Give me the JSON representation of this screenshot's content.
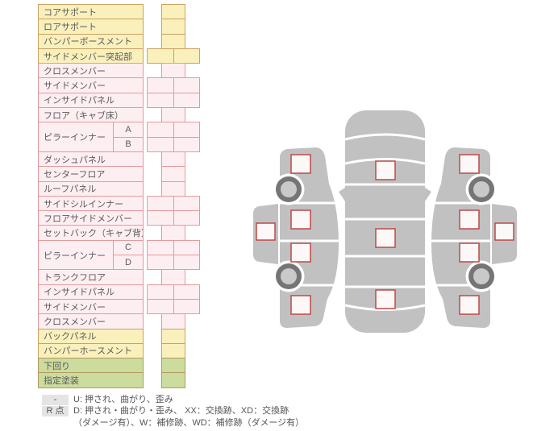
{
  "table": {
    "rows": [
      {
        "label": "コアサポート",
        "color": "yellow",
        "cells": 1
      },
      {
        "label": "ロアサポート",
        "color": "yellow",
        "cells": 1
      },
      {
        "label": "バンパーボースメント",
        "color": "yellow",
        "cells": 1
      },
      {
        "label": "サイドメンバー突起部",
        "color": "yellow",
        "cells": 2
      },
      {
        "label": "クロスメンバー",
        "color": "pink",
        "cells": 1
      },
      {
        "label": "サイドメンバー",
        "color": "pink",
        "cells": 2
      },
      {
        "label": "インサイドパネル",
        "color": "pink",
        "cells": 2
      },
      {
        "label": "フロア（キャブ床）",
        "color": "pink",
        "cells": 1
      },
      {
        "label": "ピラーインナー",
        "color": "pink",
        "cells": 2,
        "subs": [
          "A",
          "B"
        ]
      },
      {
        "label": "ダッシュパネル",
        "color": "pink",
        "cells": 1
      },
      {
        "label": "センターフロア",
        "color": "pink",
        "cells": 1
      },
      {
        "label": "ルーフパネル",
        "color": "pink",
        "cells": 1
      },
      {
        "label": "サイドシルインナー",
        "color": "pink",
        "cells": 2
      },
      {
        "label": "フロアサイドメンバー",
        "color": "pink",
        "cells": 2
      },
      {
        "label": "セットバック（キャブ背）",
        "color": "pink",
        "cells": 1
      },
      {
        "label": "ピラーインナー",
        "color": "pink",
        "cells": 2,
        "subs": [
          "C",
          "D"
        ]
      },
      {
        "label": "トランクフロア",
        "color": "pink",
        "cells": 1
      },
      {
        "label": "インサイドパネル",
        "color": "pink",
        "cells": 2
      },
      {
        "label": "サイドメンバー",
        "color": "pink",
        "cells": 2
      },
      {
        "label": "クロスメンバー",
        "color": "pink",
        "cells": 1
      },
      {
        "label": "バックパネル",
        "color": "yellow",
        "cells": 1
      },
      {
        "label": "バンパーホースメント",
        "color": "yellow",
        "cells": 1
      },
      {
        "label": "下回り",
        "color": "green",
        "cells": 1
      },
      {
        "label": "指定塗装",
        "color": "green",
        "cells": 1
      }
    ]
  },
  "legend": {
    "rows": [
      {
        "badge": "-",
        "text": "U: 押され、曲がり、歪み"
      },
      {
        "badge": "R 点",
        "text": "D: 押され・曲がり・歪み、 XX：交換跡、XD：交換跡"
      },
      {
        "badge": "",
        "text": "（ダメージ有）、W：補修跡、WD：補修跡（ダメージ有）"
      }
    ]
  },
  "diagram": {
    "views": [
      "car-top-view",
      "car-left-side-view",
      "car-right-side-view"
    ],
    "marker_shape": "square",
    "top_view_markers": 3,
    "side_view_markers": 5,
    "wheels_per_side": 2
  },
  "colors": {
    "yellow_fill": "#faf0bc",
    "yellow_border": "#c9a264",
    "pink_fill": "#fdeef1",
    "pink_border": "#e59a9c",
    "green_fill": "#cbdc9e",
    "green_border": "#b3995c",
    "car_body": "#c1c1c1",
    "wheel_ring": "#757575",
    "wheel_hub": "#c9c9c9",
    "marker_fill": "#fcf8f8",
    "marker_border": "#c04848",
    "badge_bg": "#e4e4e4",
    "text": "#5a5a5a"
  }
}
